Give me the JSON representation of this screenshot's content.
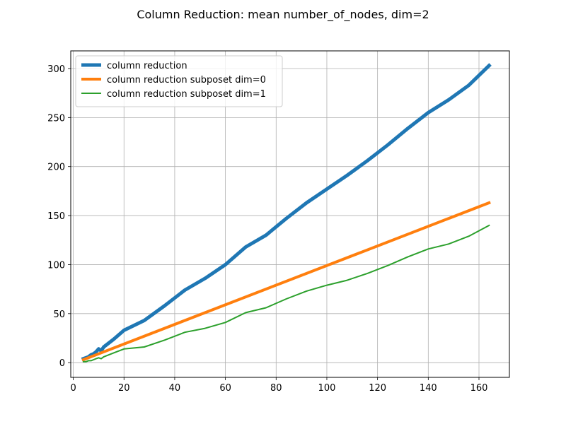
{
  "chart_data": {
    "type": "line",
    "title": "Column Reduction: mean number_of_nodes, dim=2",
    "xlabel": "",
    "ylabel": "",
    "xlim": [
      -1,
      172
    ],
    "ylim": [
      -15,
      318
    ],
    "xticks": [
      0,
      20,
      40,
      60,
      80,
      100,
      120,
      140,
      160
    ],
    "yticks": [
      0,
      50,
      100,
      150,
      200,
      250,
      300
    ],
    "grid": true,
    "legend_position": "upper-left",
    "series": [
      {
        "name": "column reduction",
        "color": "#1f77b4",
        "linewidth": 5,
        "x": [
          4,
          5,
          6,
          7,
          8,
          9,
          10,
          11,
          12,
          16,
          20,
          28,
          36,
          44,
          52,
          60,
          68,
          76,
          84,
          92,
          100,
          108,
          116,
          124,
          132,
          140,
          148,
          156,
          164
        ],
        "y": [
          4,
          5,
          6,
          8,
          9,
          11,
          14,
          12,
          16,
          24,
          33,
          43,
          58,
          74,
          86,
          100,
          118,
          130,
          147,
          163,
          177,
          191,
          206,
          222,
          239,
          255,
          268,
          283,
          303
        ]
      },
      {
        "name": "column reduction subposet dim=0",
        "color": "#ff7f0e",
        "linewidth": 4,
        "x": [
          4,
          164
        ],
        "y": [
          3,
          163
        ]
      },
      {
        "name": "column reduction subposet dim=1",
        "color": "#2ca02c",
        "linewidth": 2,
        "x": [
          4,
          5,
          6,
          7,
          8,
          9,
          10,
          11,
          12,
          16,
          20,
          28,
          36,
          44,
          52,
          60,
          68,
          76,
          84,
          92,
          100,
          108,
          116,
          124,
          132,
          140,
          148,
          156,
          164
        ],
        "y": [
          1,
          1,
          2,
          2,
          3,
          4,
          5,
          4,
          6,
          10,
          14,
          16,
          23,
          31,
          35,
          41,
          51,
          56,
          65,
          73,
          79,
          84,
          91,
          99,
          108,
          116,
          121,
          129,
          140
        ]
      }
    ]
  }
}
